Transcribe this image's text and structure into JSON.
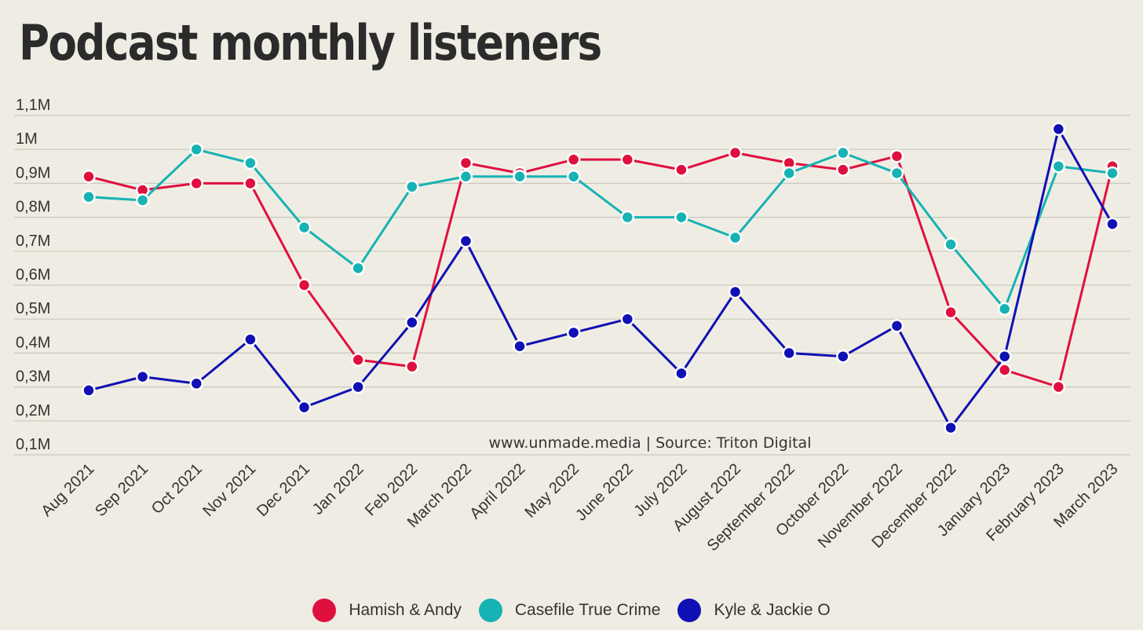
{
  "chart_data": {
    "type": "line",
    "title": "Podcast monthly listeners",
    "annotation": "www.unmade.media | Source: Triton Digital",
    "x": [
      "Aug 2021",
      "Sep 2021",
      "Oct 2021",
      "Nov 2021",
      "Dec 2021",
      "Jan 2022",
      "Feb 2022",
      "March 2022",
      "April 2022",
      "May 2022",
      "June 2022",
      "July 2022",
      "August 2022",
      "September 2022",
      "October 2022",
      "November 2022",
      "December 2022",
      "January 2023",
      "February 2023",
      "March 2023"
    ],
    "ylim": [
      0.1,
      1.1
    ],
    "yticks": [
      0.1,
      0.2,
      0.3,
      0.4,
      0.5,
      0.6,
      0.7,
      0.8,
      0.9,
      1.0,
      1.1
    ],
    "ytick_labels": [
      "0,1M",
      "0,2M",
      "0,3M",
      "0,4M",
      "0,5M",
      "0,6M",
      "0,7M",
      "0,8M",
      "0,9M",
      "1M",
      "1,1M"
    ],
    "grid": true,
    "legend_position": "bottom",
    "series": [
      {
        "name": "Hamish & Andy",
        "color": "#e0103e",
        "values": [
          0.92,
          0.88,
          0.9,
          0.9,
          0.6,
          0.38,
          0.36,
          0.96,
          0.93,
          0.97,
          0.97,
          0.94,
          0.99,
          0.96,
          0.94,
          0.98,
          0.52,
          0.35,
          0.3,
          0.95
        ]
      },
      {
        "name": "Casefile True Crime",
        "color": "#16b2b4",
        "values": [
          0.86,
          0.85,
          1.0,
          0.96,
          0.77,
          0.65,
          0.89,
          0.92,
          0.92,
          0.92,
          0.8,
          0.8,
          0.74,
          0.93,
          0.99,
          0.93,
          0.72,
          0.53,
          0.95,
          0.93
        ]
      },
      {
        "name": "Kyle & Jackie O",
        "color": "#1010b4",
        "values": [
          0.29,
          0.33,
          0.31,
          0.44,
          0.24,
          0.3,
          0.49,
          0.73,
          0.42,
          0.46,
          0.5,
          0.34,
          0.58,
          0.4,
          0.39,
          0.48,
          0.18,
          0.39,
          1.06,
          0.78
        ]
      }
    ]
  }
}
